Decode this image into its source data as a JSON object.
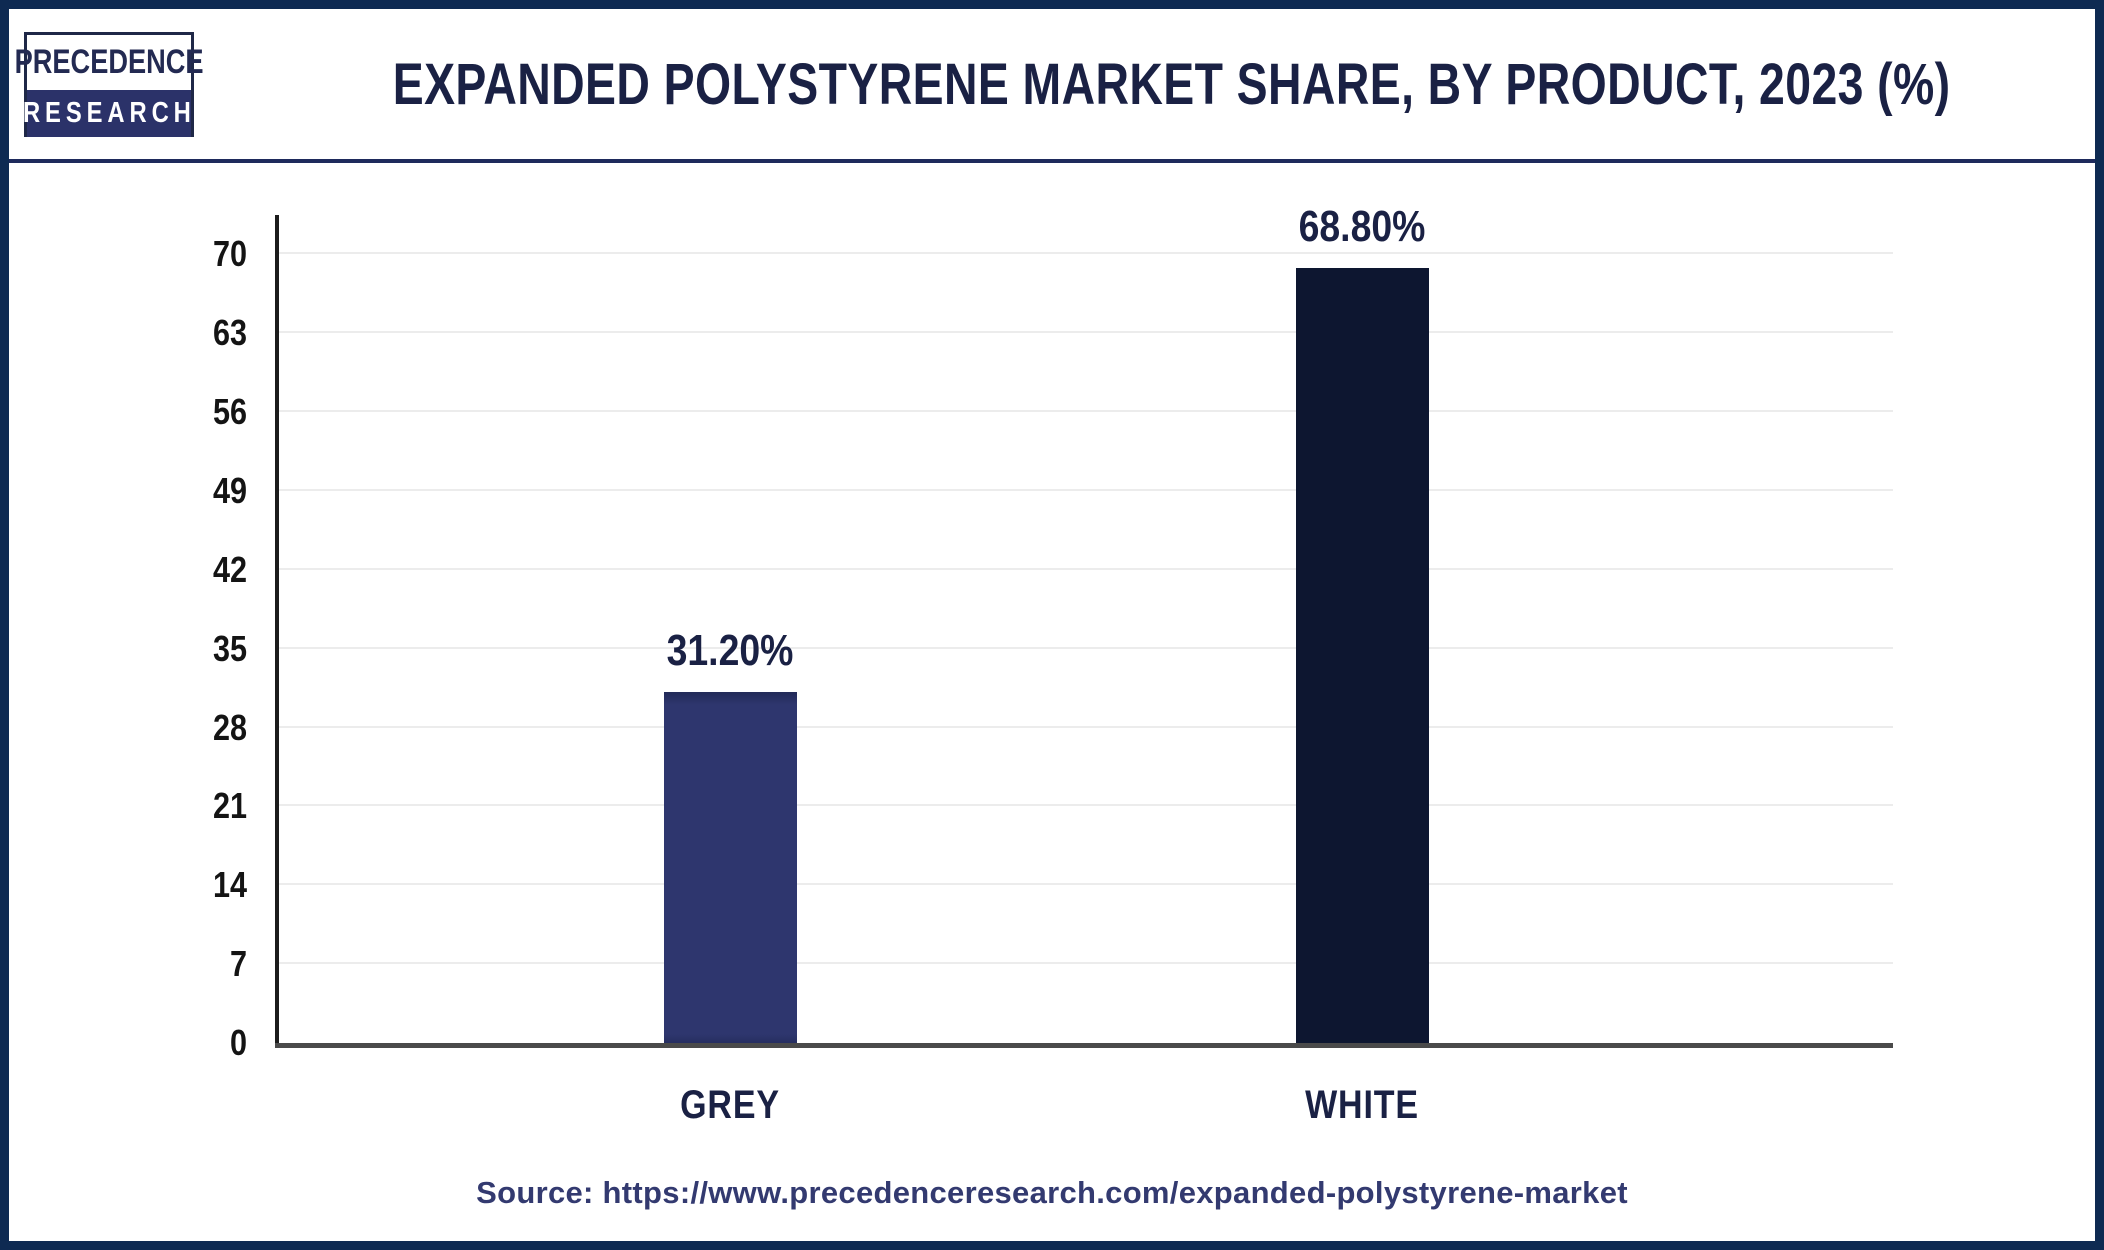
{
  "brand": {
    "line1": "PRECEDENCE",
    "line2": "RESEARCH"
  },
  "header": {
    "title": "EXPANDED POLYSTYRENE MARKET SHARE, BY PRODUCT, 2023 (%)"
  },
  "chart_data": {
    "type": "bar",
    "title": "EXPANDED POLYSTYRENE MARKET SHARE, BY PRODUCT, 2023 (%)",
    "categories": [
      "GREY",
      "WHITE"
    ],
    "values": [
      31.2,
      68.8
    ],
    "value_labels": [
      "31.20%",
      "68.80%"
    ],
    "xlabel": "",
    "ylabel": "",
    "ylim": [
      0,
      70
    ],
    "yticks": [
      0,
      7,
      14,
      21,
      28,
      35,
      42,
      49,
      56,
      63,
      70
    ],
    "grid": true,
    "legend": "none",
    "bar_colors": [
      "#2e366e",
      "#0d1630"
    ]
  },
  "footer": {
    "source": "Source: https://www.precedenceresearch.com/expanded-polystyrene-market"
  },
  "colors": {
    "frame_border": "#0e2a52",
    "header_divider": "#1e2a5c",
    "title_text": "#1a2144",
    "bar_grey": "#2e366e",
    "bar_white": "#0d1630",
    "axis_y": "#1c1c1c",
    "axis_x": "#4a4a4a",
    "gridline": "#ececec",
    "tick_text": "#141414",
    "source_text": "#333a70",
    "logo_navy": "#2b3269"
  }
}
